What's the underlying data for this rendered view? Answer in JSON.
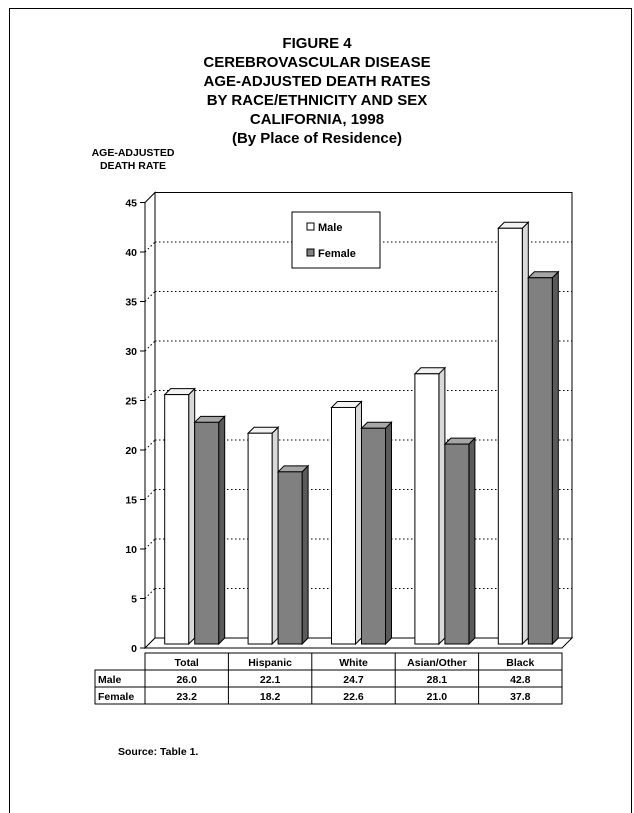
{
  "title_lines": [
    "FIGURE 4",
    "CEREBROVASCULAR DISEASE",
    "AGE-ADJUSTED DEATH RATES",
    "BY RACE/ETHNICITY AND SEX",
    "CALIFORNIA, 1998",
    "(By Place of Residence)"
  ],
  "ylabel_lines": [
    "AGE-ADJUSTED",
    "DEATH RATE"
  ],
  "source": "Source:  Table 1.",
  "chart_data": {
    "type": "bar",
    "title": "FIGURE 4 CEREBROVASCULAR DISEASE AGE-ADJUSTED DEATH RATES BY RACE/ETHNICITY AND SEX CALIFORNIA, 1998 (By Place of Residence)",
    "ylabel": "AGE-ADJUSTED DEATH RATE",
    "xlabel": "",
    "categories": [
      "Total",
      "Hispanic",
      "White",
      "Asian/Other",
      "Black"
    ],
    "series": [
      {
        "name": "Male",
        "values": [
          26.0,
          22.1,
          24.7,
          28.1,
          42.8
        ],
        "labels": [
          "26.0",
          "22.1",
          "24.7",
          "28.1",
          "42.8"
        ],
        "color": "#ffffff"
      },
      {
        "name": "Female",
        "values": [
          23.2,
          18.2,
          22.6,
          21.0,
          37.8
        ],
        "labels": [
          "23.2",
          "18.2",
          "22.6",
          "21.0",
          "37.8"
        ],
        "color": "#808080"
      }
    ],
    "ylim": [
      0,
      45
    ],
    "yticks": [
      0,
      5,
      10,
      15,
      20,
      25,
      30,
      35,
      40,
      45
    ],
    "grid": true,
    "legend": "top-center",
    "data_table": true
  }
}
